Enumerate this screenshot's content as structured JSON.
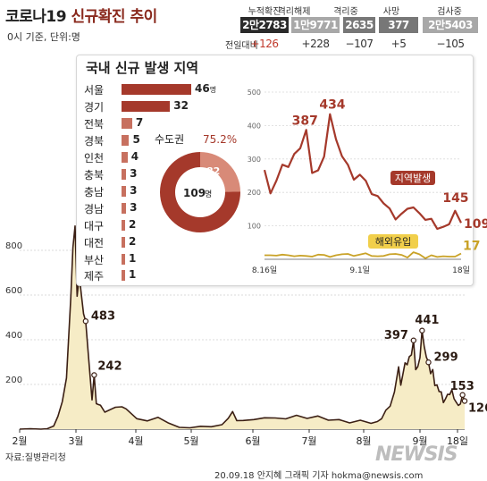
{
  "header": {
    "title_prefix": "코로나19 ",
    "title_accent": "신규확진 추이",
    "subtitle": "0시 기준, 단위:명",
    "diff_label": "전일대비",
    "stats": [
      {
        "label": "누적확진",
        "value": "2만2783",
        "diff": "+126",
        "bg": "#2a2a2a",
        "diff_color": "#c0392b"
      },
      {
        "label": "격리해제",
        "value": "1만9771",
        "diff": "+228",
        "bg": "#a8a8a8",
        "diff_color": "#333333"
      },
      {
        "label": "격리중",
        "value": "2635",
        "diff": "−107",
        "bg": "#777777",
        "diff_color": "#333333"
      },
      {
        "label": "사망",
        "value": "377",
        "diff": "+5",
        "bg": "#777777",
        "diff_color": "#333333"
      },
      {
        "label": "검사중",
        "value": "2만5403",
        "diff": "−105",
        "bg": "#a8a8a8",
        "diff_color": "#333333"
      }
    ]
  },
  "regional": {
    "title": "국내 신규 발생 지역",
    "unit": "명",
    "regions": [
      {
        "name": "서울",
        "value": 46
      },
      {
        "name": "경기",
        "value": 32
      },
      {
        "name": "전북",
        "value": 7
      },
      {
        "name": "경북",
        "value": 5
      },
      {
        "name": "인천",
        "value": 4
      },
      {
        "name": "충북",
        "value": 3
      },
      {
        "name": "충남",
        "value": 3
      },
      {
        "name": "경남",
        "value": 3
      },
      {
        "name": "대구",
        "value": 2
      },
      {
        "name": "대전",
        "value": 2
      },
      {
        "name": "부산",
        "value": 1
      },
      {
        "name": "제주",
        "value": 1
      }
    ],
    "donut": {
      "label": "수도권",
      "percent": "75.2%",
      "total": "109",
      "total_unit": "명",
      "capital": 82,
      "other": 27,
      "colors": {
        "capital": "#a5392b",
        "other": "#d88a78"
      }
    }
  },
  "chart_data": [
    {
      "type": "line",
      "x": [
        "8.16",
        "8.17",
        "8.18",
        "8.19",
        "8.20",
        "8.21",
        "8.22",
        "8.23",
        "8.24",
        "8.25",
        "8.26",
        "8.27",
        "8.28",
        "8.29",
        "8.30",
        "8.31",
        "9.1",
        "9.2",
        "9.3",
        "9.4",
        "9.5",
        "9.6",
        "9.7",
        "9.8",
        "9.9",
        "9.10",
        "9.11",
        "9.12",
        "9.13",
        "9.14",
        "9.15",
        "9.16",
        "9.17",
        "9.18"
      ],
      "series": [
        {
          "name": "지역발생",
          "color": "#a5392b",
          "values": [
            267,
            197,
            235,
            283,
            276,
            315,
            332,
            387,
            258,
            266,
            307,
            434,
            359,
            308,
            283,
            238,
            253,
            235,
            195,
            189,
            167,
            152,
            119,
            136,
            151,
            155,
            138,
            118,
            121,
            91,
            97,
            105,
            145,
            109
          ]
        },
        {
          "name": "해외유입",
          "color": "#c9a227",
          "values": [
            12,
            12,
            11,
            14,
            12,
            9,
            11,
            10,
            8,
            14,
            13,
            7,
            12,
            15,
            16,
            10,
            14,
            18,
            10,
            9,
            10,
            15,
            16,
            13,
            5,
            21,
            15,
            3,
            12,
            7,
            9,
            8,
            8,
            17
          ]
        }
      ],
      "ylim": [
        0,
        500
      ],
      "yticks": [
        100,
        200,
        300,
        400,
        500
      ],
      "xticks": [
        "8.16일",
        "9.1일",
        "18일"
      ],
      "annotations": [
        "387",
        "434",
        "145",
        "109",
        "17"
      ],
      "grid": true
    },
    {
      "type": "area",
      "series": [
        {
          "name": "신규확진",
          "color": "#3b1f14",
          "fill": "#f6ecc6",
          "values": [
            [
              0,
              0
            ],
            [
              5,
              2
            ],
            [
              10,
              0
            ],
            [
              13,
              2
            ],
            [
              16,
              14
            ],
            [
              18,
              58
            ],
            [
              20,
              123
            ],
            [
              22,
              229
            ],
            [
              24,
              586
            ],
            [
              25,
              813
            ],
            [
              26,
              909
            ],
            [
              27,
              595
            ],
            [
              28,
              686
            ],
            [
              29,
              600
            ],
            [
              30,
              516
            ],
            [
              31,
              483
            ],
            [
              32,
              367
            ],
            [
              33,
              248
            ],
            [
              34,
              131
            ],
            [
              35,
              242
            ],
            [
              36,
              114
            ],
            [
              37,
              110
            ],
            [
              38,
              107
            ],
            [
              40,
              76
            ],
            [
              45,
              98
            ],
            [
              48,
              100
            ],
            [
              50,
              91
            ],
            [
              55,
              47
            ],
            [
              60,
              37
            ],
            [
              65,
              53
            ],
            [
              70,
              27
            ],
            [
              75,
              8
            ],
            [
              80,
              6
            ],
            [
              85,
              13
            ],
            [
              90,
              11
            ],
            [
              95,
              20
            ],
            [
              98,
              49
            ],
            [
              100,
              79
            ],
            [
              102,
              38
            ],
            [
              105,
              39
            ],
            [
              110,
              43
            ],
            [
              115,
              51
            ],
            [
              120,
              50
            ],
            [
              125,
              46
            ],
            [
              130,
              62
            ],
            [
              135,
              48
            ],
            [
              140,
              59
            ],
            [
              145,
              40
            ],
            [
              150,
              43
            ],
            [
              155,
              28
            ],
            [
              160,
              40
            ],
            [
              165,
              26
            ],
            [
              168,
              34
            ],
            [
              170,
              47
            ],
            [
              172,
              85
            ],
            [
              174,
              103
            ],
            [
              176,
              166
            ],
            [
              178,
              279
            ],
            [
              179,
              197
            ],
            [
              180,
              246
            ],
            [
              181,
              297
            ],
            [
              182,
              288
            ],
            [
              183,
              324
            ],
            [
              184,
              332
            ],
            [
              185,
              397
            ],
            [
              186,
              266
            ],
            [
              187,
              280
            ],
            [
              188,
              320
            ],
            [
              189,
              441
            ],
            [
              190,
              371
            ],
            [
              191,
              323
            ],
            [
              192,
              299
            ],
            [
              193,
              248
            ],
            [
              194,
              267
            ],
            [
              195,
              195
            ],
            [
              196,
              198
            ],
            [
              197,
              168
            ],
            [
              198,
              167
            ],
            [
              199,
              119
            ],
            [
              200,
              136
            ],
            [
              201,
              156
            ],
            [
              202,
              155
            ],
            [
              203,
              176
            ],
            [
              204,
              136
            ],
            [
              205,
              121
            ],
            [
              206,
              106
            ],
            [
              207,
              113
            ],
            [
              208,
              153
            ],
            [
              209,
              126
            ]
          ]
        }
      ],
      "ylim": [
        0,
        1000
      ],
      "yticks": [
        200,
        400,
        600,
        800
      ],
      "xticks": [
        "2월",
        "3월",
        "4월",
        "5월",
        "6월",
        "7월",
        "8월",
        "9월",
        "18일"
      ],
      "annotations": [
        "483",
        "242",
        "397",
        "441",
        "299",
        "153",
        "126"
      ],
      "grid": true
    }
  ],
  "footer": {
    "source": "자료:질병관리청",
    "credit": "20.09.18 안지혜 그래픽 기자 hokma@newsis.com",
    "logo": "NEWSIS"
  }
}
